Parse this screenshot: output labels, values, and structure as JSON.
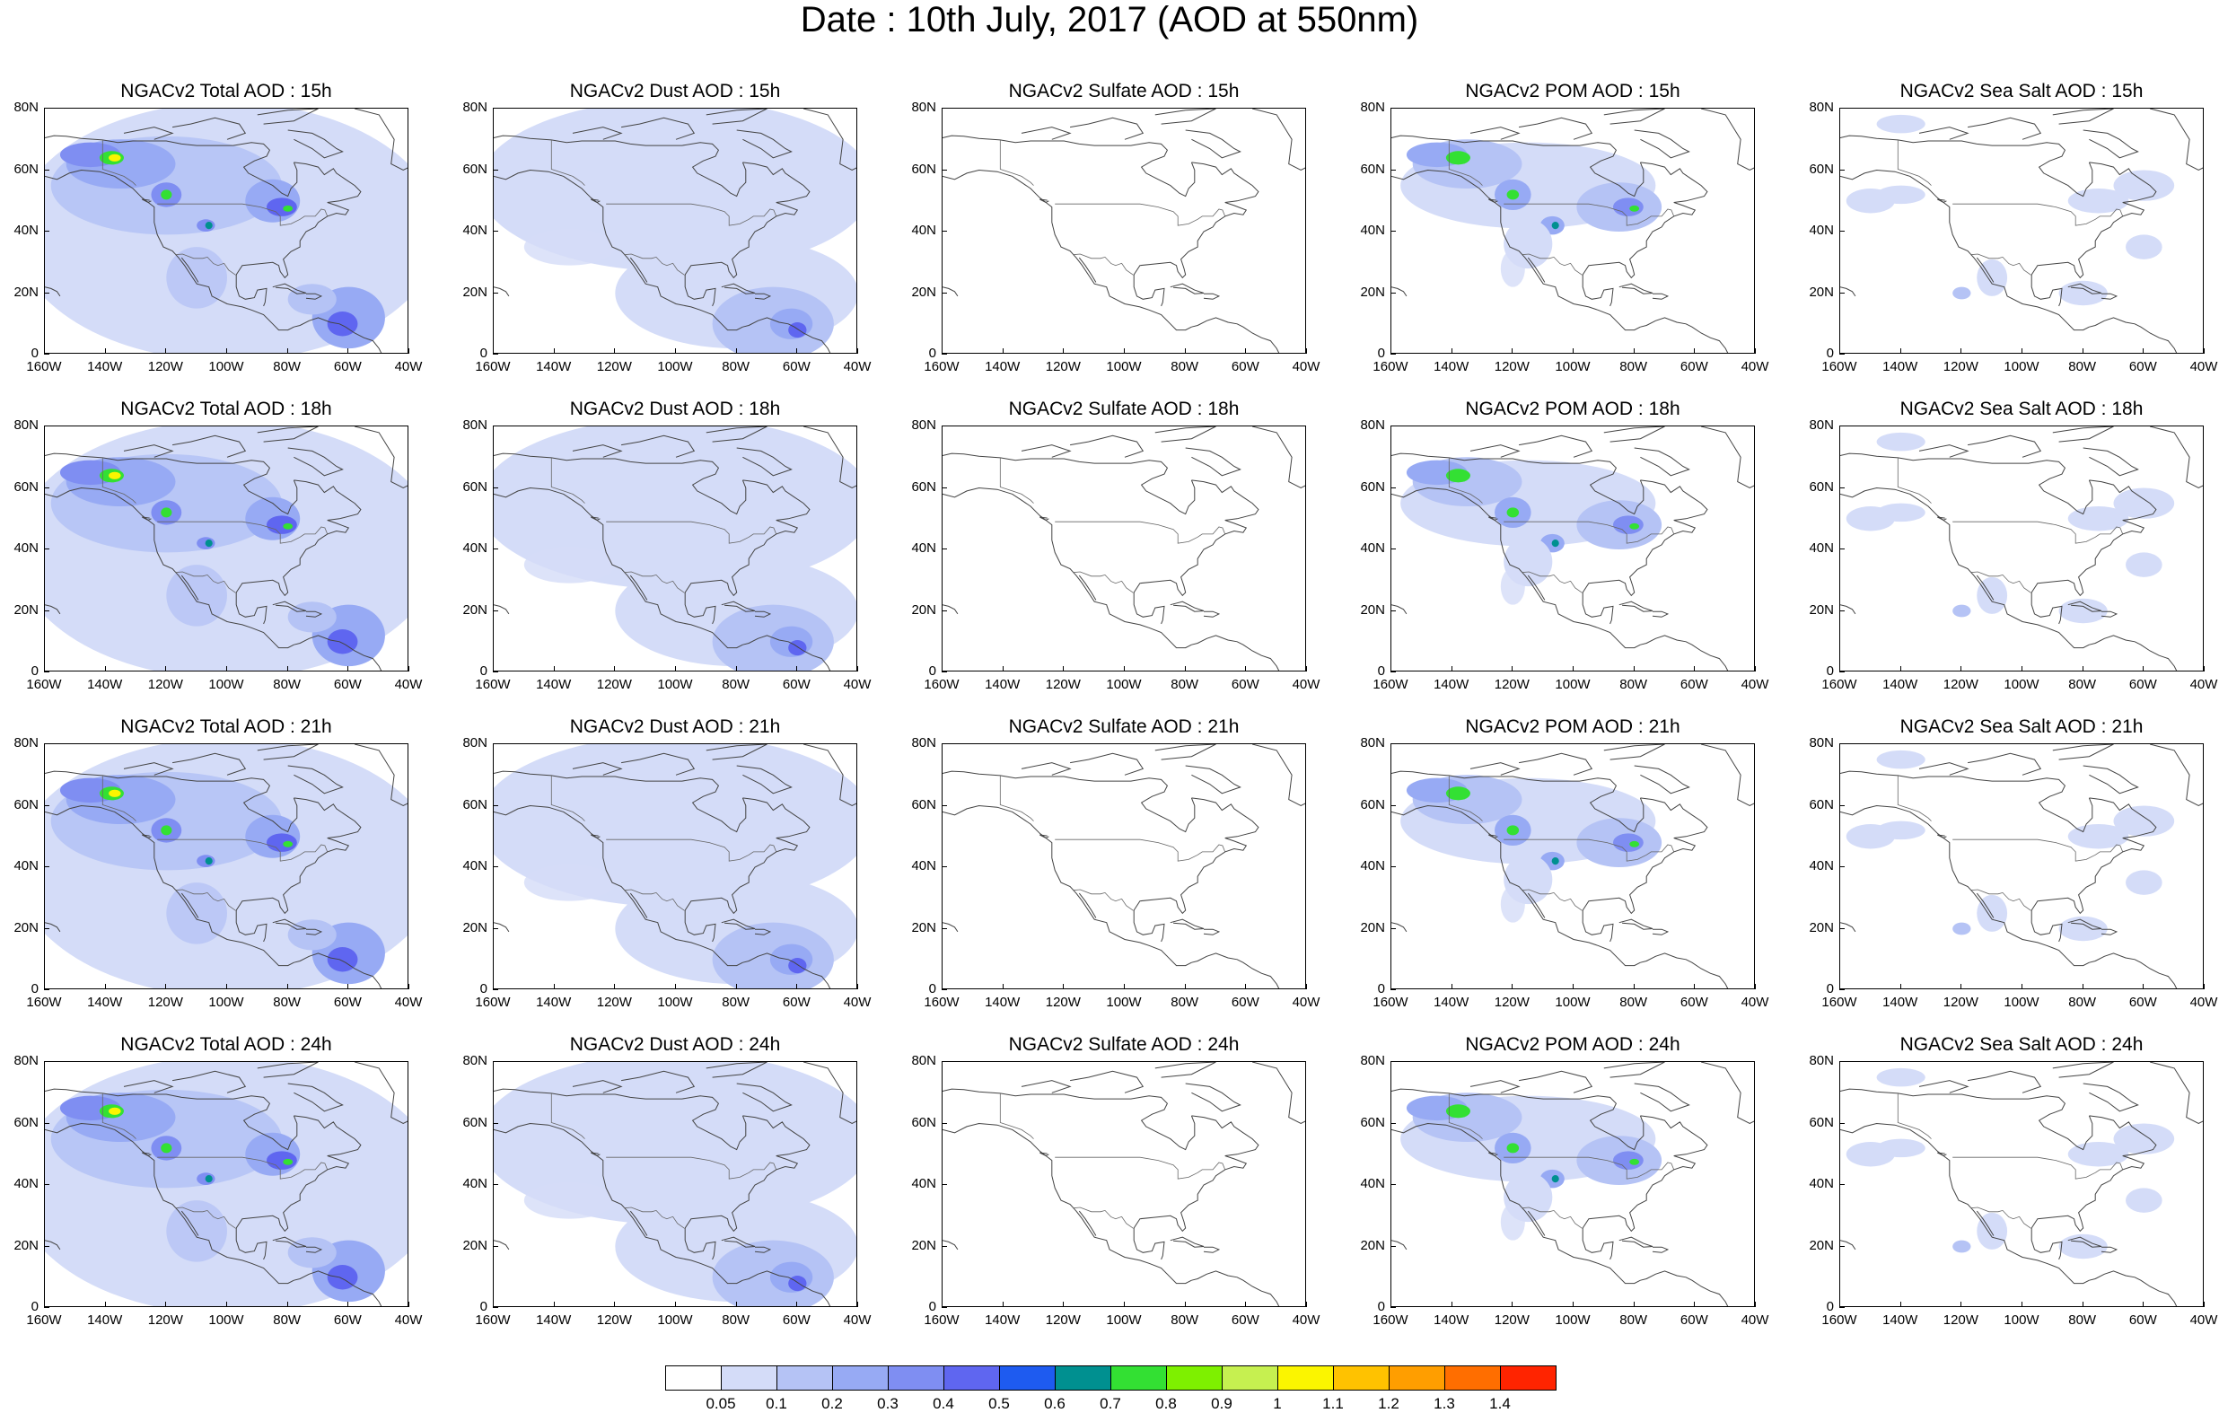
{
  "title": "Date : 10th July, 2017 (AOD at 550nm)",
  "lat_ticks": [
    "80N",
    "60N",
    "40N",
    "20N",
    "0"
  ],
  "lon_ticks": [
    "160W",
    "140W",
    "120W",
    "100W",
    "80W",
    "60W",
    "40W"
  ],
  "panels": [
    {
      "title": "NGACv2 Total AOD : 15h",
      "species": "total"
    },
    {
      "title": "NGACv2 Dust AOD : 15h",
      "species": "dust"
    },
    {
      "title": "NGACv2 Sulfate AOD : 15h",
      "species": "sulfate"
    },
    {
      "title": "NGACv2 POM AOD : 15h",
      "species": "pom"
    },
    {
      "title": "NGACv2 Sea Salt AOD : 15h",
      "species": "seasalt"
    },
    {
      "title": "NGACv2 Total AOD : 18h",
      "species": "total"
    },
    {
      "title": "NGACv2 Dust AOD : 18h",
      "species": "dust"
    },
    {
      "title": "NGACv2 Sulfate AOD : 18h",
      "species": "sulfate"
    },
    {
      "title": "NGACv2 POM AOD : 18h",
      "species": "pom"
    },
    {
      "title": "NGACv2 Sea Salt AOD : 18h",
      "species": "seasalt"
    },
    {
      "title": "NGACv2 Total AOD : 21h",
      "species": "total"
    },
    {
      "title": "NGACv2 Dust AOD : 21h",
      "species": "dust"
    },
    {
      "title": "NGACv2 Sulfate AOD : 21h",
      "species": "sulfate"
    },
    {
      "title": "NGACv2 POM AOD : 21h",
      "species": "pom"
    },
    {
      "title": "NGACv2 Sea Salt AOD : 21h",
      "species": "seasalt"
    },
    {
      "title": "NGACv2 Total AOD : 24h",
      "species": "total"
    },
    {
      "title": "NGACv2 Dust AOD : 24h",
      "species": "dust"
    },
    {
      "title": "NGACv2 Sulfate AOD : 24h",
      "species": "sulfate"
    },
    {
      "title": "NGACv2 POM AOD : 24h",
      "species": "pom"
    },
    {
      "title": "NGACv2 Sea Salt  AOD : 24h",
      "species": "seasalt"
    }
  ],
  "colorbar": {
    "labels": [
      "0.05",
      "0.1",
      "0.2",
      "0.3",
      "0.4",
      "0.5",
      "0.6",
      "0.7",
      "0.8",
      "0.9",
      "1",
      "1.1",
      "1.2",
      "1.3",
      "1.4"
    ],
    "colors": [
      "#ffffff",
      "#d4dcf8",
      "#b5c3f5",
      "#97aaf4",
      "#7f8ef2",
      "#5f66f0",
      "#1e5bf0",
      "#009090",
      "#33e033",
      "#7ef000",
      "#c6f050",
      "#fbf500",
      "#ffc200",
      "#ff9e00",
      "#ff6e00",
      "#ff2400"
    ]
  }
}
